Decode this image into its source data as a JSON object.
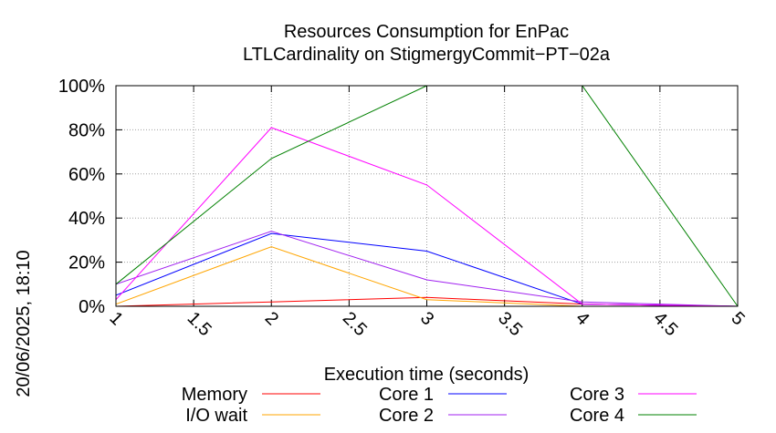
{
  "chart_data": {
    "type": "line",
    "title_line1": "Resources Consumption for EnPac",
    "title_line2": "LTLCardinality on StigmergyCommit−PT−02a",
    "xlabel": "Execution time (seconds)",
    "ylabel": "",
    "timestamp": "20/06/2025, 18:10",
    "xlim": [
      1,
      5
    ],
    "ylim": [
      0,
      100
    ],
    "x_ticks": [
      "1",
      "1.5",
      "2",
      "2.5",
      "3",
      "3.5",
      "4",
      "4.5",
      "5"
    ],
    "y_ticks": [
      "0%",
      "20%",
      "40%",
      "60%",
      "80%",
      "100%"
    ],
    "grid": true,
    "legend_position": "bottom",
    "series": [
      {
        "name": "Memory",
        "color": "#ff0000",
        "x": [
          1,
          2,
          3,
          4,
          5
        ],
        "y": [
          0,
          2,
          4,
          1,
          0
        ]
      },
      {
        "name": "I/O wait",
        "color": "#ffa500",
        "x": [
          1,
          2,
          3,
          4,
          5
        ],
        "y": [
          1,
          27,
          3,
          0,
          0
        ]
      },
      {
        "name": "Core 1",
        "color": "#0000ff",
        "x": [
          1,
          2,
          3,
          4,
          5
        ],
        "y": [
          5,
          33,
          25,
          1,
          0
        ]
      },
      {
        "name": "Core 2",
        "color": "#a020f0",
        "x": [
          1,
          2,
          3,
          4,
          5
        ],
        "y": [
          10,
          34,
          12,
          2,
          0
        ]
      },
      {
        "name": "Core 3",
        "color": "#ff00ff",
        "x": [
          1,
          2,
          3,
          4,
          5
        ],
        "y": [
          3,
          81,
          55,
          1,
          0
        ]
      },
      {
        "name": "Core 4",
        "color": "#008000",
        "x": [
          1,
          2,
          3,
          4,
          5
        ],
        "y": [
          10,
          67,
          100,
          100,
          0
        ]
      }
    ]
  }
}
